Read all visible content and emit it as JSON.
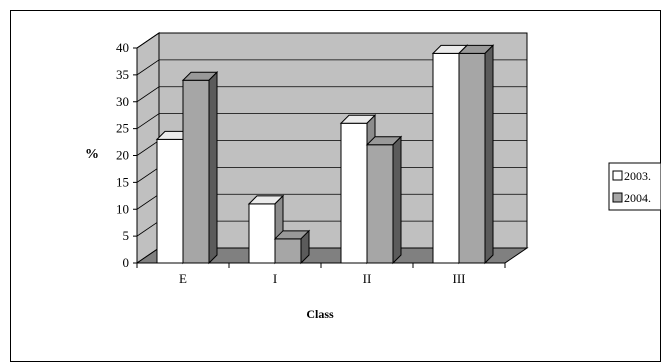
{
  "chart_data": {
    "type": "bar",
    "title": "",
    "xlabel": "Class",
    "ylabel": "%",
    "categories": [
      "E",
      "I",
      "II",
      "III"
    ],
    "series": [
      {
        "name": "2003.",
        "values": [
          23,
          11,
          26,
          39
        ]
      },
      {
        "name": "2004.",
        "values": [
          34,
          4.5,
          22,
          39
        ]
      }
    ],
    "ylim": [
      0,
      40
    ],
    "yticks": [
      "0",
      "5",
      "10",
      "15",
      "20",
      "25",
      "30",
      "35",
      "40"
    ],
    "grid": true,
    "three_d": true,
    "legend_position": "right",
    "colors": {
      "series": [
        "#ffffff",
        "#a6a6a6"
      ],
      "wall": "#c0c0c0",
      "floor": "#808080",
      "gridline": "#000000"
    }
  }
}
